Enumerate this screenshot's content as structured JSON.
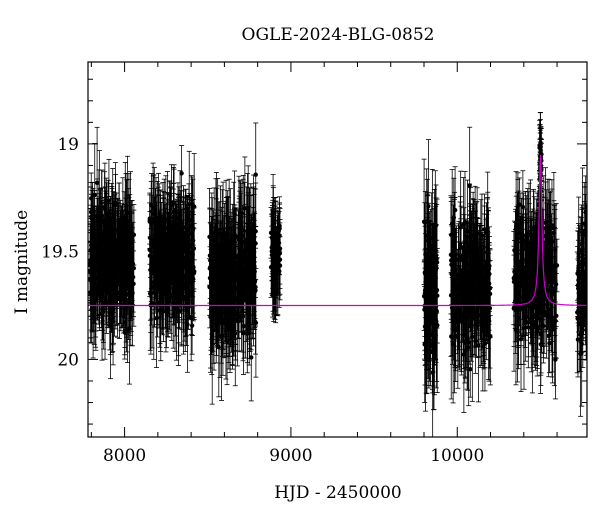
{
  "chart_data": {
    "type": "scatter",
    "title": "OGLE-2024-BLG-0852",
    "xlabel": "HJD - 2450000",
    "ylabel": "I magnitude",
    "xlim": [
      7780,
      10780
    ],
    "ylim": [
      20.36,
      18.62
    ],
    "y_inverted": true,
    "x_ticks": [
      8000,
      9000,
      10000
    ],
    "y_ticks": [
      19,
      19.5,
      20
    ],
    "x_tick_labels": [
      "8000",
      "9000",
      "10000"
    ],
    "y_tick_labels": [
      "19",
      "19.5",
      "20"
    ],
    "grid": false,
    "colors": {
      "points": "#000000",
      "model": "#cc00cc",
      "frame": "#000000"
    },
    "observing_seasons": [
      {
        "x_start": 7790,
        "x_end": 8060,
        "mag_mean": 19.55,
        "mag_spread": 0.22,
        "err_median": 0.18,
        "points": 320
      },
      {
        "x_start": 8150,
        "x_end": 8420,
        "mag_mean": 19.55,
        "mag_spread": 0.22,
        "err_median": 0.18,
        "points": 320
      },
      {
        "x_start": 8510,
        "x_end": 8790,
        "mag_mean": 19.6,
        "mag_spread": 0.24,
        "err_median": 0.2,
        "points": 320
      },
      {
        "x_start": 8880,
        "x_end": 8935,
        "mag_mean": 19.5,
        "mag_spread": 0.16,
        "err_median": 0.14,
        "points": 70
      },
      {
        "x_start": 9800,
        "x_end": 9880,
        "mag_mean": 19.7,
        "mag_spread": 0.3,
        "err_median": 0.22,
        "points": 110
      },
      {
        "x_start": 9960,
        "x_end": 10200,
        "mag_mean": 19.65,
        "mag_spread": 0.26,
        "err_median": 0.2,
        "points": 240
      },
      {
        "x_start": 10340,
        "x_end": 10600,
        "mag_mean": 19.6,
        "mag_spread": 0.24,
        "err_median": 0.2,
        "points": 240
      },
      {
        "x_start": 10720,
        "x_end": 10780,
        "mag_mean": 19.65,
        "mag_spread": 0.24,
        "err_median": 0.2,
        "points": 60
      }
    ],
    "peak": {
      "x": 10500,
      "mag": 18.95,
      "width_days": 12
    },
    "model": {
      "baseline_mag": 19.75,
      "peak_x": 10500,
      "peak_mag": 19.05,
      "tE_days": 10
    }
  }
}
